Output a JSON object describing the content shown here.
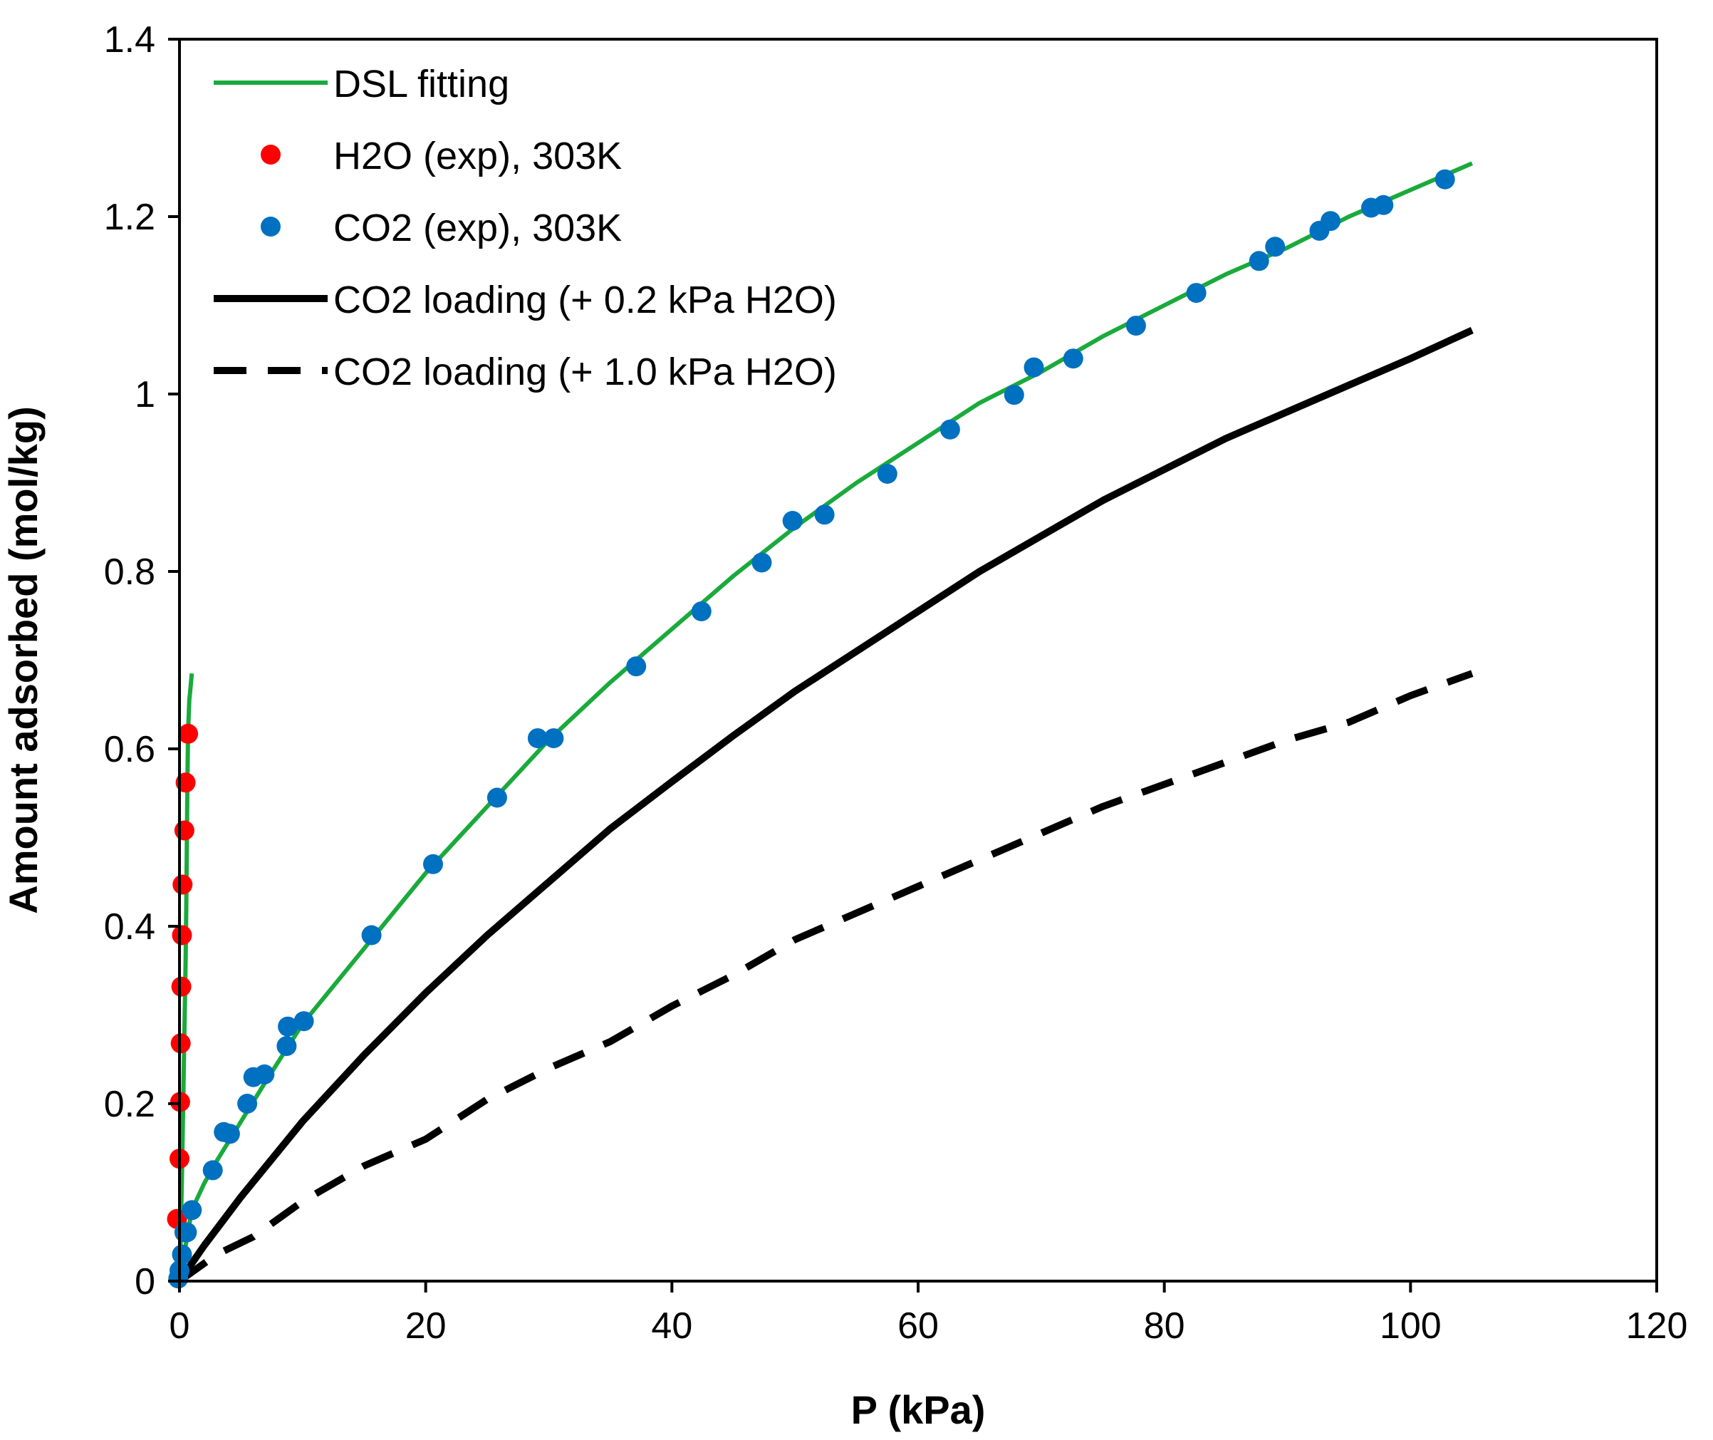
{
  "chart_data": {
    "type": "line",
    "title": "",
    "xlabel": "P (kPa)",
    "ylabel": "Amount adsorbed (mol/kg)",
    "xlim": [
      0,
      120
    ],
    "ylim": [
      0,
      1.4
    ],
    "xticks": [
      0,
      20,
      40,
      60,
      80,
      100,
      120
    ],
    "yticks": [
      0,
      0.2,
      0.4,
      0.6,
      0.8,
      1.0,
      1.2,
      1.4
    ],
    "xtick_labels": [
      "0",
      "20",
      "40",
      "60",
      "80",
      "100",
      "120"
    ],
    "ytick_labels": [
      "0",
      "0.2",
      "0.4",
      "0.6",
      "0.8",
      "1",
      "1.2",
      "1.4"
    ],
    "grid": false,
    "legend_position": "top-left",
    "colors": {
      "green": "#1aaa3c",
      "red": "#ff0000",
      "blue": "#0070c0",
      "black": "#000000"
    },
    "series": [
      {
        "name": "DSL fitting",
        "kind": "line",
        "style": "solid",
        "color": "#1aaa3c",
        "points": [
          [
            0.05,
            0.01
          ],
          [
            0.1,
            0.05
          ],
          [
            0.2,
            0.12
          ],
          [
            0.3,
            0.2
          ],
          [
            0.4,
            0.28
          ],
          [
            0.5,
            0.36
          ],
          [
            0.55,
            0.42
          ],
          [
            0.6,
            0.5
          ],
          [
            0.65,
            0.57
          ],
          [
            0.7,
            0.62
          ],
          [
            0.8,
            0.655
          ],
          [
            0.9,
            0.67
          ],
          [
            1.0,
            0.685
          ]
        ]
      },
      {
        "name": "DSL fitting (CO2)",
        "kind": "line",
        "style": "solid",
        "color": "#1aaa3c",
        "legend": false,
        "points": [
          [
            0,
            0
          ],
          [
            1,
            0.08
          ],
          [
            2,
            0.11
          ],
          [
            3,
            0.135
          ],
          [
            5,
            0.18
          ],
          [
            7,
            0.225
          ],
          [
            10,
            0.29
          ],
          [
            15,
            0.375
          ],
          [
            20,
            0.46
          ],
          [
            25,
            0.535
          ],
          [
            30,
            0.61
          ],
          [
            35,
            0.675
          ],
          [
            40,
            0.735
          ],
          [
            45,
            0.795
          ],
          [
            50,
            0.85
          ],
          [
            55,
            0.9
          ],
          [
            60,
            0.945
          ],
          [
            65,
            0.99
          ],
          [
            70,
            1.025
          ],
          [
            75,
            1.065
          ],
          [
            80,
            1.1
          ],
          [
            85,
            1.135
          ],
          [
            90,
            1.165
          ],
          [
            95,
            1.2
          ],
          [
            100,
            1.23
          ],
          [
            105,
            1.26
          ]
        ]
      },
      {
        "name": "H2O (exp), 303K",
        "kind": "scatter",
        "color": "#ff0000",
        "points": [
          [
            -0.2,
            0.07
          ],
          [
            0.0,
            0.138
          ],
          [
            0.05,
            0.202
          ],
          [
            0.1,
            0.268
          ],
          [
            0.15,
            0.332
          ],
          [
            0.2,
            0.39
          ],
          [
            0.25,
            0.447
          ],
          [
            0.4,
            0.508
          ],
          [
            0.5,
            0.562
          ],
          [
            0.7,
            0.617
          ]
        ]
      },
      {
        "name": "CO2 (exp), 303K",
        "kind": "scatter",
        "color": "#0070c0",
        "points": [
          [
            -0.1,
            0.003
          ],
          [
            0.0,
            0.012
          ],
          [
            0.2,
            0.03
          ],
          [
            0.4,
            0.055
          ],
          [
            0.6,
            0.055
          ],
          [
            1.0,
            0.08
          ],
          [
            2.7,
            0.125
          ],
          [
            3.6,
            0.168
          ],
          [
            4.1,
            0.166
          ],
          [
            5.5,
            0.2
          ],
          [
            6.0,
            0.23
          ],
          [
            6.9,
            0.233
          ],
          [
            8.7,
            0.265
          ],
          [
            8.8,
            0.287
          ],
          [
            10.1,
            0.293
          ],
          [
            15.6,
            0.39
          ],
          [
            20.6,
            0.47
          ],
          [
            25.8,
            0.545
          ],
          [
            29.1,
            0.612
          ],
          [
            30.4,
            0.612
          ],
          [
            37.1,
            0.693
          ],
          [
            42.4,
            0.755
          ],
          [
            47.3,
            0.81
          ],
          [
            49.8,
            0.857
          ],
          [
            52.4,
            0.864
          ],
          [
            57.5,
            0.91
          ],
          [
            62.6,
            0.96
          ],
          [
            67.8,
            0.999
          ],
          [
            69.4,
            1.03
          ],
          [
            72.6,
            1.04
          ],
          [
            77.7,
            1.077
          ],
          [
            82.6,
            1.114
          ],
          [
            87.7,
            1.15
          ],
          [
            89.0,
            1.166
          ],
          [
            92.6,
            1.184
          ],
          [
            93.5,
            1.195
          ],
          [
            96.8,
            1.21
          ],
          [
            97.8,
            1.213
          ],
          [
            102.8,
            1.242
          ]
        ]
      },
      {
        "name": "CO2 loading (+ 0.2 kPa H2O)",
        "kind": "line",
        "style": "solid",
        "color": "#000000",
        "points": [
          [
            0,
            0
          ],
          [
            2,
            0.04
          ],
          [
            5,
            0.095
          ],
          [
            10,
            0.18
          ],
          [
            15,
            0.255
          ],
          [
            20,
            0.325
          ],
          [
            25,
            0.39
          ],
          [
            30,
            0.45
          ],
          [
            35,
            0.51
          ],
          [
            40,
            0.563
          ],
          [
            45,
            0.615
          ],
          [
            50,
            0.665
          ],
          [
            55,
            0.71
          ],
          [
            60,
            0.755
          ],
          [
            65,
            0.8
          ],
          [
            70,
            0.84
          ],
          [
            75,
            0.88
          ],
          [
            80,
            0.915
          ],
          [
            85,
            0.95
          ],
          [
            90,
            0.98
          ],
          [
            95,
            1.01
          ],
          [
            100,
            1.04
          ],
          [
            105,
            1.072
          ]
        ]
      },
      {
        "name": "CO2 loading (+ 1.0 kPa H2O)",
        "kind": "line",
        "style": "dashed",
        "color": "#000000",
        "points": [
          [
            0,
            0
          ],
          [
            3,
            0.03
          ],
          [
            6,
            0.05
          ],
          [
            10,
            0.09
          ],
          [
            15,
            0.13
          ],
          [
            20,
            0.16
          ],
          [
            25,
            0.205
          ],
          [
            30,
            0.24
          ],
          [
            35,
            0.27
          ],
          [
            40,
            0.31
          ],
          [
            45,
            0.345
          ],
          [
            50,
            0.385
          ],
          [
            55,
            0.415
          ],
          [
            60,
            0.445
          ],
          [
            65,
            0.475
          ],
          [
            70,
            0.505
          ],
          [
            75,
            0.535
          ],
          [
            80,
            0.56
          ],
          [
            85,
            0.585
          ],
          [
            90,
            0.61
          ],
          [
            95,
            0.63
          ],
          [
            100,
            0.66
          ],
          [
            105,
            0.685
          ]
        ]
      }
    ],
    "legend": [
      {
        "label": "DSL fitting",
        "marker": "line-solid",
        "color": "#1aaa3c"
      },
      {
        "label": "H2O (exp), 303K",
        "marker": "dot",
        "color": "#ff0000"
      },
      {
        "label": "CO2 (exp), 303K",
        "marker": "dot",
        "color": "#0070c0"
      },
      {
        "label": "CO2 loading (+ 0.2 kPa H2O)",
        "marker": "line-solid",
        "color": "#000000"
      },
      {
        "label": "CO2 loading (+ 1.0 kPa H2O)",
        "marker": "line-dashed",
        "color": "#000000"
      }
    ]
  }
}
